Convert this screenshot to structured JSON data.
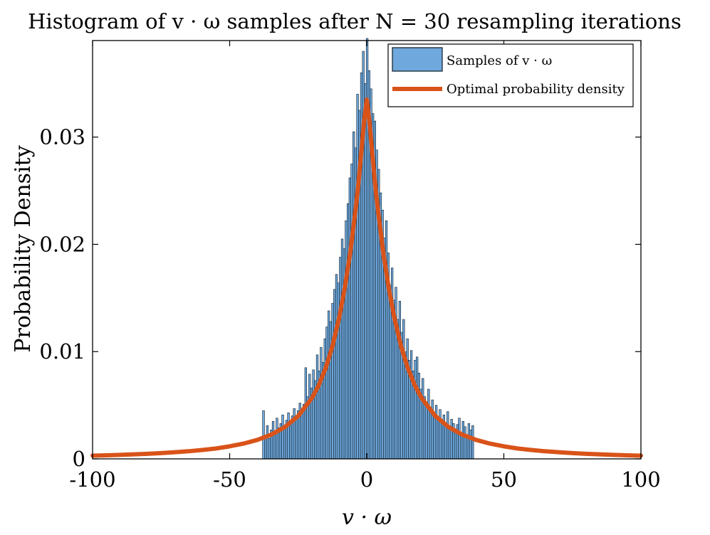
{
  "chart_data": {
    "type": "bar",
    "title": "Histogram of v · ω samples after N = 30 resampling iterations",
    "xlabel": "v · ω",
    "ylabel": "Probability Density",
    "xlim": [
      -100,
      100
    ],
    "ylim": [
      0,
      0.039
    ],
    "xticks": [
      -100,
      -50,
      0,
      50,
      100
    ],
    "xtick_labels": [
      "-100",
      "-50",
      "0",
      "50",
      "100"
    ],
    "yticks": [
      0,
      0.01,
      0.02,
      0.03
    ],
    "ytick_labels": [
      "0",
      "0.01",
      "0.02",
      "0.03"
    ],
    "grid": false,
    "legend_position": "top-right",
    "legend": [
      {
        "label": "Samples of v · ω",
        "kind": "patch"
      },
      {
        "label": "Optimal probability density",
        "kind": "line"
      }
    ],
    "colors": {
      "bar_fill": "#6fa8dc",
      "bar_edge": "#0d1b26",
      "curve": "#d95319",
      "axes": "#000000"
    },
    "series": [
      {
        "name": "Samples of v · ω",
        "kind": "histogram",
        "bin_edges_range": [
          -38,
          39
        ],
        "bin_width": 0.7,
        "bin_centers": [
          -37.65,
          -36.95,
          -36.25,
          -35.55,
          -34.85,
          -34.15,
          -33.45,
          -32.75,
          -32.05,
          -31.35,
          -30.65,
          -29.95,
          -29.25,
          -28.55,
          -27.85,
          -27.15,
          -26.45,
          -25.75,
          -25.05,
          -24.35,
          -23.65,
          -22.95,
          -22.25,
          -21.55,
          -20.85,
          -20.15,
          -19.45,
          -18.75,
          -18.05,
          -17.35,
          -16.65,
          -15.95,
          -15.25,
          -14.55,
          -13.85,
          -13.15,
          -12.45,
          -11.75,
          -11.05,
          -10.35,
          -9.65,
          -8.95,
          -8.25,
          -7.55,
          -6.85,
          -6.15,
          -5.45,
          -4.75,
          -4.05,
          -3.35,
          -2.65,
          -1.95,
          -1.25,
          -0.55,
          0.15,
          0.85,
          1.55,
          2.25,
          2.95,
          3.65,
          4.35,
          5.05,
          5.75,
          6.45,
          7.15,
          7.85,
          8.55,
          9.25,
          9.95,
          10.65,
          11.35,
          12.05,
          12.75,
          13.45,
          14.15,
          14.85,
          15.55,
          16.25,
          16.95,
          17.65,
          18.35,
          19.05,
          19.75,
          20.45,
          21.15,
          21.85,
          22.55,
          23.25,
          23.95,
          24.65,
          25.35,
          26.05,
          26.75,
          27.45,
          28.15,
          28.85,
          29.55,
          30.25,
          30.95,
          31.65,
          32.35,
          33.05,
          33.75,
          34.45,
          35.15,
          35.85,
          36.55,
          37.25,
          37.95,
          38.65
        ],
        "values": [
          0.0045,
          0.0022,
          0.0031,
          0.0019,
          0.0027,
          0.0035,
          0.0024,
          0.0038,
          0.0029,
          0.0033,
          0.0041,
          0.003,
          0.0036,
          0.0043,
          0.0034,
          0.004,
          0.0047,
          0.0038,
          0.0045,
          0.0052,
          0.0044,
          0.0051,
          0.0085,
          0.0058,
          0.0079,
          0.0066,
          0.0083,
          0.0073,
          0.0097,
          0.0082,
          0.0104,
          0.009,
          0.0112,
          0.0123,
          0.0138,
          0.0128,
          0.0145,
          0.0158,
          0.0172,
          0.0164,
          0.0188,
          0.0205,
          0.0196,
          0.0222,
          0.0238,
          0.0262,
          0.0275,
          0.0305,
          0.029,
          0.034,
          0.0325,
          0.036,
          0.038,
          0.035,
          0.0392,
          0.0362,
          0.0345,
          0.0322,
          0.0315,
          0.0288,
          0.027,
          0.0248,
          0.0232,
          0.0206,
          0.0222,
          0.0192,
          0.0162,
          0.0178,
          0.0148,
          0.016,
          0.013,
          0.0147,
          0.0118,
          0.013,
          0.01,
          0.0112,
          0.0092,
          0.0101,
          0.0082,
          0.0092,
          0.0095,
          0.008,
          0.0065,
          0.0075,
          0.0058,
          0.0053,
          0.0065,
          0.0048,
          0.0055,
          0.0042,
          0.005,
          0.0036,
          0.0046,
          0.0035,
          0.0041,
          0.0031,
          0.0044,
          0.003,
          0.0037,
          0.0033,
          0.0028,
          0.0032,
          0.0038,
          0.0024,
          0.0035,
          0.003,
          0.0021,
          0.0033,
          0.0027,
          0.0031
        ]
      },
      {
        "name": "Optimal probability density",
        "kind": "line",
        "x": [
          -100,
          -95,
          -90,
          -85,
          -80,
          -75,
          -70,
          -65,
          -60,
          -55,
          -50,
          -45,
          -40,
          -35,
          -30,
          -25,
          -20,
          -17.5,
          -15,
          -12.5,
          -10,
          -8,
          -6,
          -4,
          -3,
          -2,
          -1,
          0,
          1,
          2,
          3,
          4,
          6,
          8,
          10,
          12.5,
          15,
          17.5,
          20,
          25,
          30,
          35,
          40,
          45,
          50,
          55,
          60,
          65,
          70,
          75,
          80,
          85,
          90,
          95,
          100
        ],
        "y": [
          0.0003,
          0.00033,
          0.00037,
          0.00042,
          0.00047,
          0.00054,
          0.00062,
          0.00071,
          0.00083,
          0.00097,
          0.00117,
          0.00142,
          0.00176,
          0.00224,
          0.00294,
          0.004,
          0.00567,
          0.00687,
          0.00845,
          0.01052,
          0.01324,
          0.01596,
          0.01928,
          0.02338,
          0.02576,
          0.02853,
          0.03139,
          0.0335,
          0.03139,
          0.02853,
          0.02576,
          0.02338,
          0.01928,
          0.01596,
          0.01324,
          0.01052,
          0.00845,
          0.00687,
          0.00567,
          0.004,
          0.00294,
          0.00224,
          0.00176,
          0.00142,
          0.00117,
          0.00097,
          0.00083,
          0.00071,
          0.00062,
          0.00054,
          0.00047,
          0.00042,
          0.00037,
          0.00033,
          0.0003
        ]
      }
    ]
  }
}
